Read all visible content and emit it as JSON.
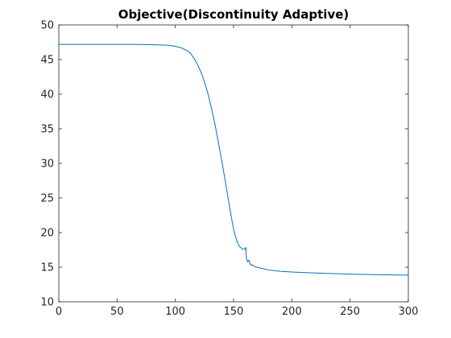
{
  "chart_data": {
    "type": "line",
    "title": "Objective(Discontinuity Adaptive)",
    "xlabel": "",
    "ylabel": "",
    "xlim": [
      0,
      300
    ],
    "ylim": [
      10,
      50
    ],
    "xticks": [
      0,
      50,
      100,
      150,
      200,
      250,
      300
    ],
    "yticks": [
      10,
      15,
      20,
      25,
      30,
      35,
      40,
      45,
      50
    ],
    "grid": false,
    "legend": "none",
    "series": [
      {
        "color": "#0072BD",
        "x": [
          0,
          20,
          40,
          60,
          80,
          90,
          95,
          100,
          105,
          110,
          113,
          116,
          119,
          122,
          125,
          128,
          131,
          134,
          137,
          140,
          143,
          145,
          147,
          149,
          151,
          153,
          155,
          157,
          158,
          159,
          160,
          160.5,
          161,
          161.5,
          162,
          163,
          164,
          165,
          166,
          167,
          168,
          170,
          175,
          180,
          190,
          200,
          220,
          250,
          280,
          300
        ],
        "y": [
          47.2,
          47.2,
          47.2,
          47.2,
          47.15,
          47.1,
          47.05,
          46.9,
          46.7,
          46.3,
          45.9,
          45.2,
          44.3,
          43.2,
          41.8,
          40.1,
          38.0,
          35.7,
          33.0,
          30.3,
          27.3,
          25.3,
          23.3,
          21.4,
          19.8,
          18.7,
          18.0,
          17.7,
          17.6,
          17.6,
          17.6,
          17.9,
          16.4,
          16.0,
          15.8,
          16.0,
          15.6,
          15.3,
          15.35,
          15.2,
          15.1,
          15.0,
          14.8,
          14.6,
          14.4,
          14.3,
          14.15,
          14.0,
          13.9,
          13.85
        ]
      }
    ]
  }
}
